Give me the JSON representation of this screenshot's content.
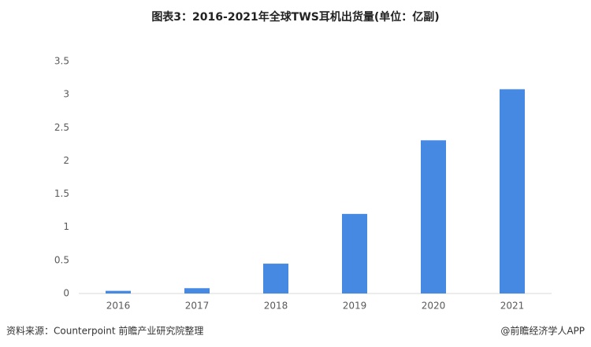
{
  "chart_data": {
    "type": "bar",
    "title": "图表3：2016-2021年全球TWS耳机出货量(单位：亿副)",
    "categories": [
      "2016",
      "2017",
      "2018",
      "2019",
      "2020",
      "2021"
    ],
    "values": [
      0.04,
      0.08,
      0.45,
      1.2,
      2.31,
      3.08
    ],
    "color": "#4689e3",
    "ylim": [
      0,
      3.5
    ],
    "yticks": [
      0,
      0.5,
      1,
      1.5,
      2,
      2.5,
      3,
      3.5
    ],
    "grid": false,
    "source": "资料来源：Counterpoint 前瞻产业研究院整理",
    "credit": "@前瞻经济学人APP"
  }
}
